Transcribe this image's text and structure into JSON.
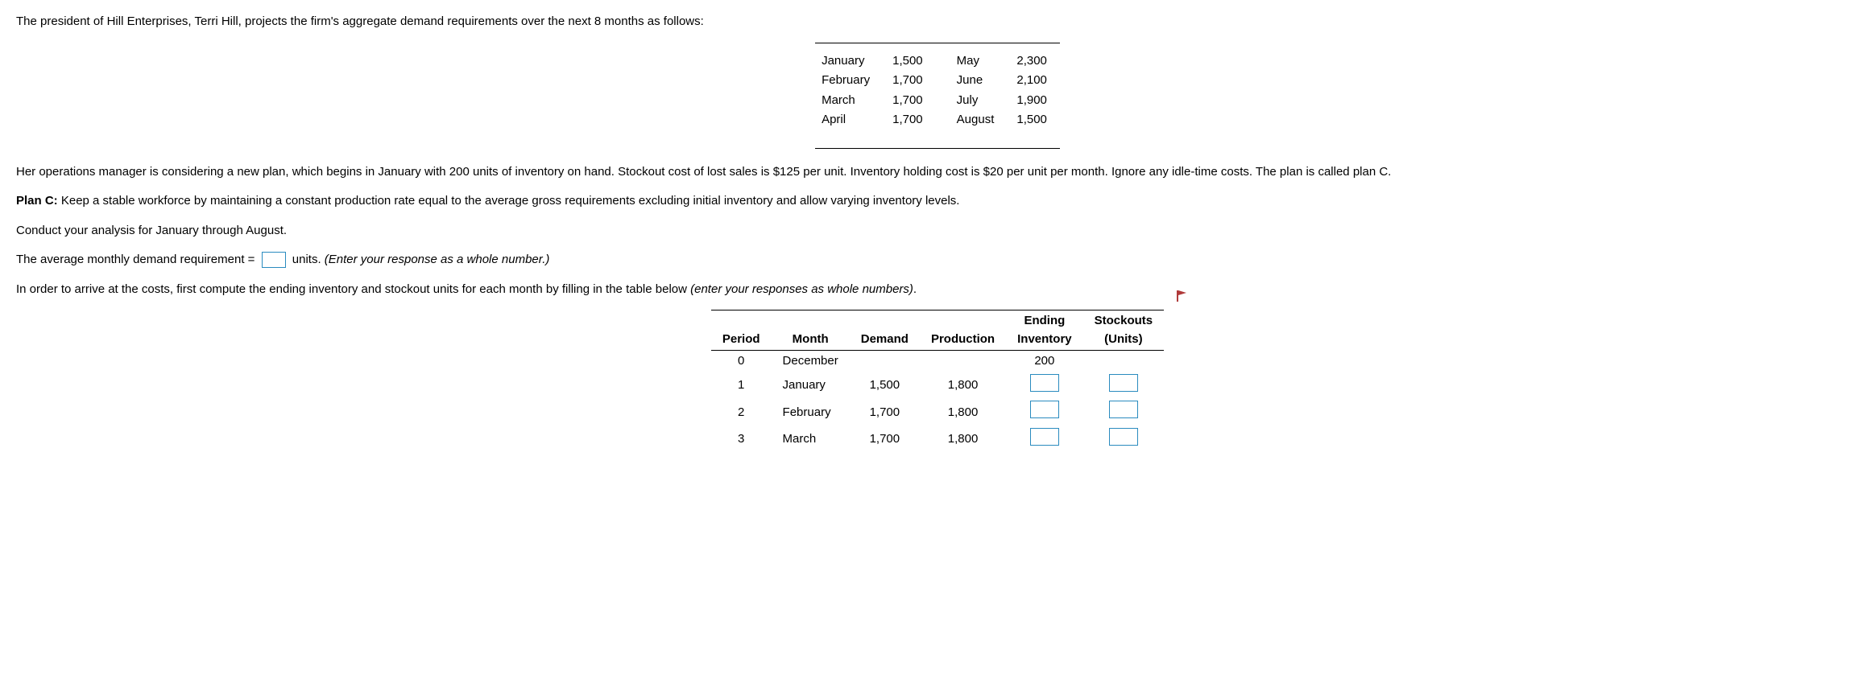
{
  "intro": "The president of Hill Enterprises, Terri Hill, projects the firm's aggregate demand requirements over the next 8 months as follows:",
  "demand_rows": [
    {
      "m1": "January",
      "v1": "1,500",
      "m2": "May",
      "v2": "2,300"
    },
    {
      "m1": "February",
      "v1": "1,700",
      "m2": "June",
      "v2": "2,100"
    },
    {
      "m1": "March",
      "v1": "1,700",
      "m2": "July",
      "v2": "1,900"
    },
    {
      "m1": "April",
      "v1": "1,700",
      "m2": "August",
      "v2": "1,500"
    }
  ],
  "para2": "Her operations manager is considering a new plan, which begins in January with 200 units of inventory on hand. Stockout cost of lost sales is $125 per unit. Inventory holding cost is $20 per unit per month. Ignore any idle-time costs. The plan is called plan C.",
  "planc_label": "Plan C: ",
  "planc_text": "Keep a stable workforce by maintaining a constant production rate equal to the average gross requirements excluding initial inventory and allow varying inventory levels.",
  "conduct": "Conduct your analysis for January through August.",
  "avg_pre": "The average monthly demand requirement = ",
  "avg_post_units": " units. ",
  "avg_hint": "(Enter your response as a whole number.)",
  "pre_table": "In order to arrive at the costs, first compute the ending inventory and stockout units for each month by filling in the table below ",
  "pre_table_hint": "(enter your responses as whole numbers)",
  "pre_table_end": ".",
  "headers": {
    "period": "Period",
    "month": "Month",
    "demand": "Demand",
    "production": "Production",
    "ending1": "Ending",
    "ending2": "Inventory",
    "stock1": "Stockouts",
    "stock2": "(Units)"
  },
  "plan_rows": [
    {
      "period": "0",
      "month": "December",
      "demand": "",
      "production": "",
      "ending": "200",
      "stock": "",
      "ei_input": false,
      "st_input": false
    },
    {
      "period": "1",
      "month": "January",
      "demand": "1,500",
      "production": "1,800",
      "ending": "",
      "stock": "",
      "ei_input": true,
      "st_input": true
    },
    {
      "period": "2",
      "month": "February",
      "demand": "1,700",
      "production": "1,800",
      "ending": "",
      "stock": "",
      "ei_input": true,
      "st_input": true
    },
    {
      "period": "3",
      "month": "March",
      "demand": "1,700",
      "production": "1,800",
      "ending": "",
      "stock": "",
      "ei_input": true,
      "st_input": true
    }
  ],
  "colors": {
    "input_border": "#2a8bbf",
    "flag": "#b03a3a"
  }
}
